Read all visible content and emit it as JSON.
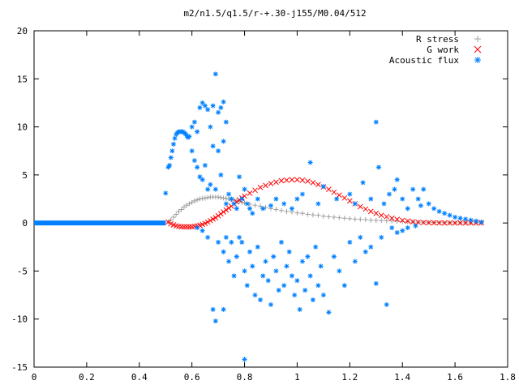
{
  "chart_data": {
    "type": "scatter",
    "title": "m2/n1.5/q1.5/r-+.30-j155/M0.04/512",
    "xlabel": "",
    "ylabel": "",
    "xlim": [
      0,
      1.8
    ],
    "ylim": [
      -15,
      20
    ],
    "x_ticks": [
      "0",
      "0.2",
      "0.4",
      "0.6",
      "0.8",
      "1",
      "1.2",
      "1.4",
      "1.6",
      "1.8"
    ],
    "y_ticks": [
      "-15",
      "-10",
      "-5",
      "0",
      "5",
      "10",
      "15",
      "20"
    ],
    "grid": false,
    "legend_position": "top-right",
    "series": [
      {
        "name": "R stress",
        "marker": "+",
        "color": "#a0a0a0"
      },
      {
        "name": "G work",
        "marker": "x",
        "color": "#ff0000"
      },
      {
        "name": "Acoustic flux",
        "marker": "*",
        "color": "#0080ff"
      }
    ],
    "r_stress_points": [
      [
        0.51,
        0.1
      ],
      [
        0.52,
        0.3
      ],
      [
        0.53,
        0.6
      ],
      [
        0.54,
        0.9
      ],
      [
        0.55,
        1.2
      ],
      [
        0.56,
        1.4
      ],
      [
        0.57,
        1.65
      ],
      [
        0.58,
        1.85
      ],
      [
        0.59,
        2.0
      ],
      [
        0.6,
        2.15
      ],
      [
        0.61,
        2.3
      ],
      [
        0.62,
        2.4
      ],
      [
        0.63,
        2.5
      ],
      [
        0.64,
        2.55
      ],
      [
        0.65,
        2.6
      ],
      [
        0.66,
        2.65
      ],
      [
        0.67,
        2.7
      ],
      [
        0.68,
        2.7
      ],
      [
        0.69,
        2.7
      ],
      [
        0.7,
        2.7
      ],
      [
        0.71,
        2.65
      ],
      [
        0.72,
        2.6
      ],
      [
        0.73,
        2.55
      ],
      [
        0.74,
        2.5
      ],
      [
        0.75,
        2.45
      ],
      [
        0.76,
        2.4
      ],
      [
        0.77,
        2.3
      ],
      [
        0.78,
        2.25
      ],
      [
        0.79,
        2.15
      ],
      [
        0.8,
        2.1
      ],
      [
        0.82,
        1.95
      ],
      [
        0.84,
        1.85
      ],
      [
        0.86,
        1.75
      ],
      [
        0.88,
        1.6
      ],
      [
        0.9,
        1.5
      ],
      [
        0.92,
        1.4
      ],
      [
        0.94,
        1.3
      ],
      [
        0.96,
        1.2
      ],
      [
        0.98,
        1.15
      ],
      [
        1.0,
        1.05
      ],
      [
        1.02,
        1.0
      ],
      [
        1.04,
        0.9
      ],
      [
        1.06,
        0.85
      ],
      [
        1.08,
        0.8
      ],
      [
        1.1,
        0.7
      ],
      [
        1.12,
        0.65
      ],
      [
        1.14,
        0.6
      ],
      [
        1.16,
        0.55
      ],
      [
        1.18,
        0.5
      ],
      [
        1.2,
        0.45
      ],
      [
        1.22,
        0.4
      ],
      [
        1.24,
        0.38
      ],
      [
        1.26,
        0.35
      ],
      [
        1.28,
        0.3
      ],
      [
        1.3,
        0.28
      ],
      [
        1.32,
        0.25
      ],
      [
        1.34,
        0.22
      ],
      [
        1.36,
        0.2
      ],
      [
        1.38,
        0.18
      ],
      [
        1.4,
        0.15
      ],
      [
        1.42,
        0.13
      ],
      [
        1.44,
        0.11
      ],
      [
        1.46,
        0.09
      ],
      [
        1.48,
        0.08
      ],
      [
        1.5,
        0.06
      ],
      [
        1.52,
        0.05
      ],
      [
        1.54,
        0.04
      ],
      [
        1.56,
        0.03
      ],
      [
        1.58,
        0.02
      ],
      [
        1.6,
        0.02
      ],
      [
        1.62,
        0.01
      ],
      [
        1.64,
        0.01
      ],
      [
        1.66,
        0.0
      ],
      [
        1.68,
        0.0
      ],
      [
        1.7,
        0.0
      ]
    ],
    "g_work_points": [
      [
        0.51,
        0.1
      ],
      [
        0.52,
        -0.1
      ],
      [
        0.53,
        -0.2
      ],
      [
        0.54,
        -0.3
      ],
      [
        0.55,
        -0.35
      ],
      [
        0.56,
        -0.4
      ],
      [
        0.57,
        -0.4
      ],
      [
        0.58,
        -0.4
      ],
      [
        0.59,
        -0.4
      ],
      [
        0.6,
        -0.4
      ],
      [
        0.61,
        -0.35
      ],
      [
        0.62,
        -0.3
      ],
      [
        0.63,
        -0.25
      ],
      [
        0.64,
        -0.15
      ],
      [
        0.65,
        -0.05
      ],
      [
        0.66,
        0.1
      ],
      [
        0.67,
        0.25
      ],
      [
        0.68,
        0.4
      ],
      [
        0.69,
        0.55
      ],
      [
        0.7,
        0.75
      ],
      [
        0.71,
        0.95
      ],
      [
        0.72,
        1.15
      ],
      [
        0.73,
        1.35
      ],
      [
        0.74,
        1.55
      ],
      [
        0.75,
        1.75
      ],
      [
        0.76,
        2.0
      ],
      [
        0.77,
        2.2
      ],
      [
        0.78,
        2.4
      ],
      [
        0.79,
        2.6
      ],
      [
        0.8,
        2.8
      ],
      [
        0.82,
        3.1
      ],
      [
        0.84,
        3.4
      ],
      [
        0.86,
        3.7
      ],
      [
        0.88,
        3.9
      ],
      [
        0.9,
        4.1
      ],
      [
        0.92,
        4.25
      ],
      [
        0.94,
        4.4
      ],
      [
        0.96,
        4.45
      ],
      [
        0.98,
        4.5
      ],
      [
        1.0,
        4.5
      ],
      [
        1.02,
        4.45
      ],
      [
        1.04,
        4.35
      ],
      [
        1.06,
        4.2
      ],
      [
        1.08,
        4.0
      ],
      [
        1.1,
        3.75
      ],
      [
        1.12,
        3.5
      ],
      [
        1.14,
        3.2
      ],
      [
        1.16,
        2.9
      ],
      [
        1.18,
        2.6
      ],
      [
        1.2,
        2.3
      ],
      [
        1.22,
        2.0
      ],
      [
        1.24,
        1.7
      ],
      [
        1.26,
        1.45
      ],
      [
        1.28,
        1.2
      ],
      [
        1.3,
        1.0
      ],
      [
        1.32,
        0.8
      ],
      [
        1.34,
        0.65
      ],
      [
        1.36,
        0.5
      ],
      [
        1.38,
        0.38
      ],
      [
        1.4,
        0.28
      ],
      [
        1.42,
        0.2
      ],
      [
        1.44,
        0.13
      ],
      [
        1.46,
        0.08
      ],
      [
        1.48,
        0.05
      ],
      [
        1.5,
        0.03
      ],
      [
        1.52,
        0.02
      ],
      [
        1.54,
        0.01
      ],
      [
        1.56,
        0.0
      ],
      [
        1.58,
        0.0
      ],
      [
        1.6,
        0.0
      ],
      [
        1.62,
        0.0
      ],
      [
        1.64,
        0.0
      ],
      [
        1.66,
        0.0
      ],
      [
        1.68,
        0.0
      ],
      [
        1.7,
        0.0
      ]
    ],
    "acoustic_flux_points": [
      [
        0.5,
        3.1
      ],
      [
        0.51,
        5.8
      ],
      [
        0.515,
        6.0
      ],
      [
        0.52,
        6.8
      ],
      [
        0.525,
        7.5
      ],
      [
        0.53,
        8.2
      ],
      [
        0.535,
        8.8
      ],
      [
        0.54,
        9.2
      ],
      [
        0.545,
        9.4
      ],
      [
        0.55,
        9.5
      ],
      [
        0.555,
        9.5
      ],
      [
        0.56,
        9.5
      ],
      [
        0.565,
        9.5
      ],
      [
        0.57,
        9.4
      ],
      [
        0.575,
        9.3
      ],
      [
        0.58,
        9.1
      ],
      [
        0.585,
        8.9
      ],
      [
        0.59,
        9.0
      ],
      [
        0.6,
        10.0
      ],
      [
        0.61,
        10.5
      ],
      [
        0.62,
        9.5
      ],
      [
        0.63,
        12.0
      ],
      [
        0.64,
        12.5
      ],
      [
        0.65,
        12.2
      ],
      [
        0.66,
        11.8
      ],
      [
        0.67,
        10.0
      ],
      [
        0.68,
        12.2
      ],
      [
        0.69,
        15.5
      ],
      [
        0.7,
        11.5
      ],
      [
        0.71,
        12.0
      ],
      [
        0.72,
        12.6
      ],
      [
        0.73,
        10.5
      ],
      [
        0.6,
        7.5
      ],
      [
        0.61,
        6.5
      ],
      [
        0.62,
        5.8
      ],
      [
        0.63,
        4.8
      ],
      [
        0.64,
        4.5
      ],
      [
        0.65,
        6.0
      ],
      [
        0.66,
        3.5
      ],
      [
        0.67,
        4.0
      ],
      [
        0.68,
        8.0
      ],
      [
        0.69,
        3.5
      ],
      [
        0.7,
        7.5
      ],
      [
        0.71,
        5.0
      ],
      [
        0.72,
        8.5
      ],
      [
        0.73,
        2.0
      ],
      [
        0.74,
        3.0
      ],
      [
        0.75,
        2.5
      ],
      [
        0.76,
        2.0
      ],
      [
        0.77,
        1.5
      ],
      [
        0.78,
        4.8
      ],
      [
        0.79,
        2.5
      ],
      [
        0.8,
        3.5
      ],
      [
        0.81,
        2.0
      ],
      [
        0.82,
        1.5
      ],
      [
        0.83,
        1.0
      ],
      [
        0.85,
        2.5
      ],
      [
        0.87,
        1.5
      ],
      [
        0.9,
        1.8
      ],
      [
        0.92,
        2.5
      ],
      [
        0.95,
        2.0
      ],
      [
        0.98,
        1.5
      ],
      [
        1.0,
        2.5
      ],
      [
        1.02,
        3.0
      ],
      [
        1.05,
        6.3
      ],
      [
        1.08,
        2.0
      ],
      [
        1.1,
        3.8
      ],
      [
        1.15,
        2.5
      ],
      [
        1.2,
        3.0
      ],
      [
        1.22,
        2.0
      ],
      [
        1.25,
        4.2
      ],
      [
        1.28,
        2.5
      ],
      [
        1.3,
        10.5
      ],
      [
        1.31,
        5.8
      ],
      [
        1.33,
        2.0
      ],
      [
        1.35,
        3.0
      ],
      [
        1.37,
        3.5
      ],
      [
        1.38,
        4.5
      ],
      [
        1.4,
        2.5
      ],
      [
        1.42,
        1.5
      ],
      [
        1.44,
        3.5
      ],
      [
        1.46,
        2.5
      ],
      [
        1.47,
        1.8
      ],
      [
        1.48,
        3.5
      ],
      [
        1.5,
        2.0
      ],
      [
        1.52,
        1.5
      ],
      [
        1.54,
        1.2
      ],
      [
        1.56,
        1.0
      ],
      [
        1.58,
        0.8
      ],
      [
        1.6,
        0.6
      ],
      [
        1.62,
        0.5
      ],
      [
        1.64,
        0.4
      ],
      [
        1.66,
        0.3
      ],
      [
        1.68,
        0.2
      ],
      [
        1.7,
        0.1
      ],
      [
        0.62,
        -0.5
      ],
      [
        0.64,
        -0.8
      ],
      [
        0.66,
        -1.5
      ],
      [
        0.68,
        -9.0
      ],
      [
        0.69,
        -10.2
      ],
      [
        0.72,
        -9.0
      ],
      [
        0.7,
        -2.0
      ],
      [
        0.72,
        -3.0
      ],
      [
        0.73,
        -1.5
      ],
      [
        0.74,
        -4.0
      ],
      [
        0.75,
        -2.0
      ],
      [
        0.76,
        -5.5
      ],
      [
        0.77,
        -3.5
      ],
      [
        0.78,
        -1.5
      ],
      [
        0.79,
        -2.0
      ],
      [
        0.8,
        -14.2
      ],
      [
        0.8,
        -5.0
      ],
      [
        0.81,
        -6.5
      ],
      [
        0.82,
        -3.0
      ],
      [
        0.83,
        -4.5
      ],
      [
        0.84,
        -7.5
      ],
      [
        0.85,
        -2.5
      ],
      [
        0.86,
        -8.0
      ],
      [
        0.87,
        -5.5
      ],
      [
        0.88,
        -4.0
      ],
      [
        0.89,
        -6.0
      ],
      [
        0.9,
        -8.5
      ],
      [
        0.91,
        -3.5
      ],
      [
        0.92,
        -5.0
      ],
      [
        0.93,
        -7.0
      ],
      [
        0.94,
        -2.0
      ],
      [
        0.95,
        -6.5
      ],
      [
        0.96,
        -4.5
      ],
      [
        0.97,
        -3.0
      ],
      [
        0.98,
        -5.5
      ],
      [
        0.99,
        -7.5
      ],
      [
        1.0,
        -6.0
      ],
      [
        1.01,
        -9.0
      ],
      [
        1.02,
        -4.0
      ],
      [
        1.03,
        -7.0
      ],
      [
        1.04,
        -3.5
      ],
      [
        1.05,
        -5.5
      ],
      [
        1.06,
        -8.0
      ],
      [
        1.07,
        -2.5
      ],
      [
        1.08,
        -6.5
      ],
      [
        1.09,
        -4.5
      ],
      [
        1.1,
        -7.5
      ],
      [
        1.12,
        -9.3
      ],
      [
        1.14,
        -3.5
      ],
      [
        1.16,
        -5.0
      ],
      [
        1.18,
        -6.5
      ],
      [
        1.2,
        -2.0
      ],
      [
        1.22,
        -4.0
      ],
      [
        1.24,
        -1.5
      ],
      [
        1.26,
        -3.0
      ],
      [
        1.28,
        -2.5
      ],
      [
        1.3,
        -6.3
      ],
      [
        1.32,
        -1.5
      ],
      [
        1.34,
        -8.5
      ],
      [
        1.36,
        -0.5
      ],
      [
        1.38,
        -1.0
      ],
      [
        1.4,
        -0.8
      ],
      [
        1.42,
        -0.5
      ],
      [
        1.45,
        -0.3
      ]
    ]
  }
}
